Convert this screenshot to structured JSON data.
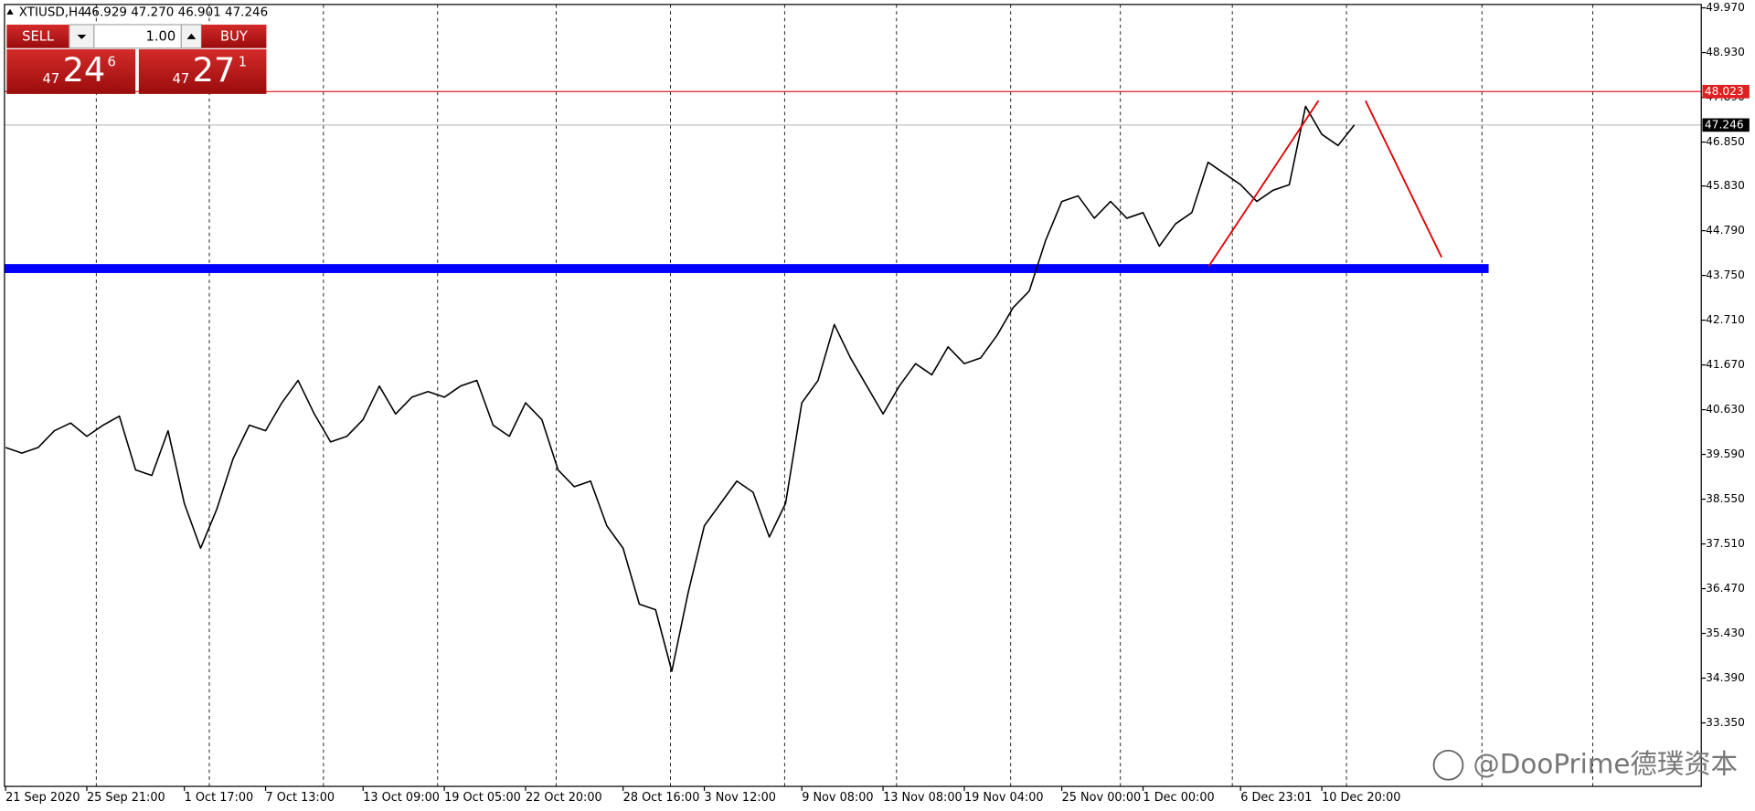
{
  "header": {
    "symbol": "XTIUSD,H4",
    "ohlc": "46.929 47.270 46.901 47.246"
  },
  "trade_panel": {
    "sell": "SELL",
    "lots": "1.00",
    "buy": "BUY",
    "sell_price": {
      "lead": "47",
      "main": "24",
      "tail": "6"
    },
    "buy_price": {
      "lead": "47",
      "main": "27",
      "tail": "1"
    }
  },
  "watermark": "@DooPrime德璞资本",
  "chart_data": {
    "type": "line",
    "color": "#000000",
    "categories": [
      "21 Sep 2020",
      null,
      null,
      null,
      null,
      "25 Sep 21:00",
      null,
      null,
      null,
      null,
      null,
      "1 Oct 17:00",
      null,
      null,
      null,
      null,
      "7 Oct 13:00",
      null,
      null,
      null,
      null,
      null,
      "13 Oct 09:00",
      null,
      null,
      null,
      null,
      "19 Oct 05:00",
      null,
      null,
      null,
      null,
      "22 Oct 20:00",
      null,
      null,
      null,
      null,
      null,
      "28 Oct 16:00",
      null,
      null,
      null,
      null,
      "3 Nov 12:00",
      null,
      null,
      null,
      null,
      null,
      "9 Nov 08:00",
      null,
      null,
      null,
      null,
      "13 Nov 08:00",
      null,
      null,
      null,
      null,
      "19 Nov 04:00",
      null,
      null,
      null,
      null,
      null,
      "25 Nov 00:00",
      null,
      null,
      null,
      null,
      "1 Dec 00:00",
      null,
      null,
      null,
      null,
      null,
      "6 Dec 23:01",
      null,
      null,
      null,
      null,
      "10 Dec 20:00",
      null,
      null
    ],
    "values": [
      39.75,
      39.62,
      39.75,
      40.14,
      40.32,
      40.01,
      40.27,
      40.48,
      39.23,
      39.1,
      40.14,
      38.45,
      37.41,
      38.32,
      39.49,
      40.27,
      40.14,
      40.79,
      41.31,
      40.53,
      39.88,
      40.01,
      40.4,
      41.18,
      40.53,
      40.92,
      41.05,
      40.92,
      41.18,
      41.31,
      40.27,
      40.01,
      40.79,
      40.4,
      39.23,
      38.84,
      38.97,
      37.93,
      37.41,
      36.11,
      35.98,
      34.55,
      36.37,
      37.93,
      38.45,
      38.97,
      38.71,
      37.67,
      38.45,
      40.79,
      41.31,
      42.61,
      41.83,
      41.18,
      40.53,
      41.18,
      41.7,
      41.44,
      42.09,
      41.7,
      41.83,
      42.35,
      43.0,
      43.39,
      44.56,
      45.47,
      45.6,
      45.08,
      45.47,
      45.08,
      45.21,
      44.43,
      44.95,
      45.21,
      46.38,
      46.12,
      45.86,
      45.47,
      45.73,
      45.86,
      47.68,
      47.03,
      46.77,
      47.246
    ],
    "ylim": [
      31.874,
      50.152
    ],
    "yticks": [
      {
        "value": 49.97,
        "label": "49.970"
      },
      {
        "value": 48.93,
        "label": "48.930"
      },
      {
        "value": 47.89,
        "label": "47.890"
      },
      {
        "value": 46.85,
        "label": "46.850"
      },
      {
        "value": 45.83,
        "label": "45.830"
      },
      {
        "value": 44.79,
        "label": "44.790"
      },
      {
        "value": 43.75,
        "label": "43.750"
      },
      {
        "value": 42.71,
        "label": "42.710"
      },
      {
        "value": 41.67,
        "label": "41.670"
      },
      {
        "value": 40.63,
        "label": "40.630"
      },
      {
        "value": 39.59,
        "label": "39.590"
      },
      {
        "value": 38.55,
        "label": "38.550"
      },
      {
        "value": 37.51,
        "label": "37.510"
      },
      {
        "value": 36.47,
        "label": "36.470"
      },
      {
        "value": 35.43,
        "label": "35.430"
      },
      {
        "value": 34.39,
        "label": "34.390"
      },
      {
        "value": 33.35,
        "label": "33.350"
      }
    ],
    "alert_line": {
      "value": 48.023,
      "label": "48.023",
      "color": "#e02020"
    },
    "price_line": {
      "value": 47.246,
      "label": "47.246",
      "color": "#c0c0c0"
    },
    "support_level": {
      "value": 43.91,
      "color": "#0000ff"
    }
  }
}
